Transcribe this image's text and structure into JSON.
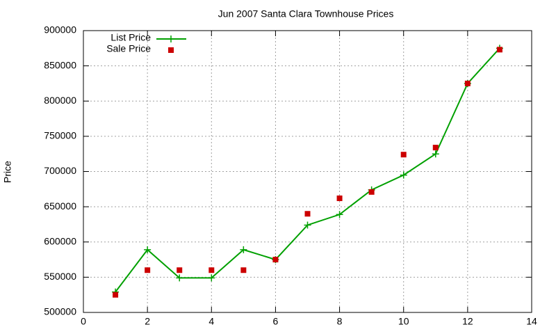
{
  "chart_data": {
    "type": "line",
    "title": "Jun 2007 Santa Clara Townhouse Prices",
    "y_label": "Price",
    "x": [
      1,
      2,
      3,
      4,
      5,
      6,
      7,
      8,
      9,
      10,
      11,
      12,
      13
    ],
    "series": [
      {
        "name": "List Price",
        "color": "#00a000",
        "mode": "lines+markers",
        "marker": "plus",
        "values": [
          529000,
          589000,
          549000,
          549000,
          589000,
          575000,
          624000,
          639000,
          674000,
          695000,
          725000,
          825000,
          875000
        ]
      },
      {
        "name": "Sale Price",
        "color": "#cc0000",
        "mode": "markers",
        "marker": "square",
        "values": [
          525000,
          560000,
          560000,
          560000,
          560000,
          575000,
          640000,
          662000,
          671000,
          724000,
          734000,
          825000,
          873000
        ]
      }
    ],
    "xlim": [
      0,
      14
    ],
    "xticks": [
      0,
      2,
      4,
      6,
      8,
      10,
      12,
      14
    ],
    "ylim": [
      500000,
      900000
    ],
    "yticks": [
      500000,
      550000,
      600000,
      650000,
      700000,
      750000,
      800000,
      850000,
      900000
    ],
    "grid": true,
    "legend": "top-left"
  }
}
